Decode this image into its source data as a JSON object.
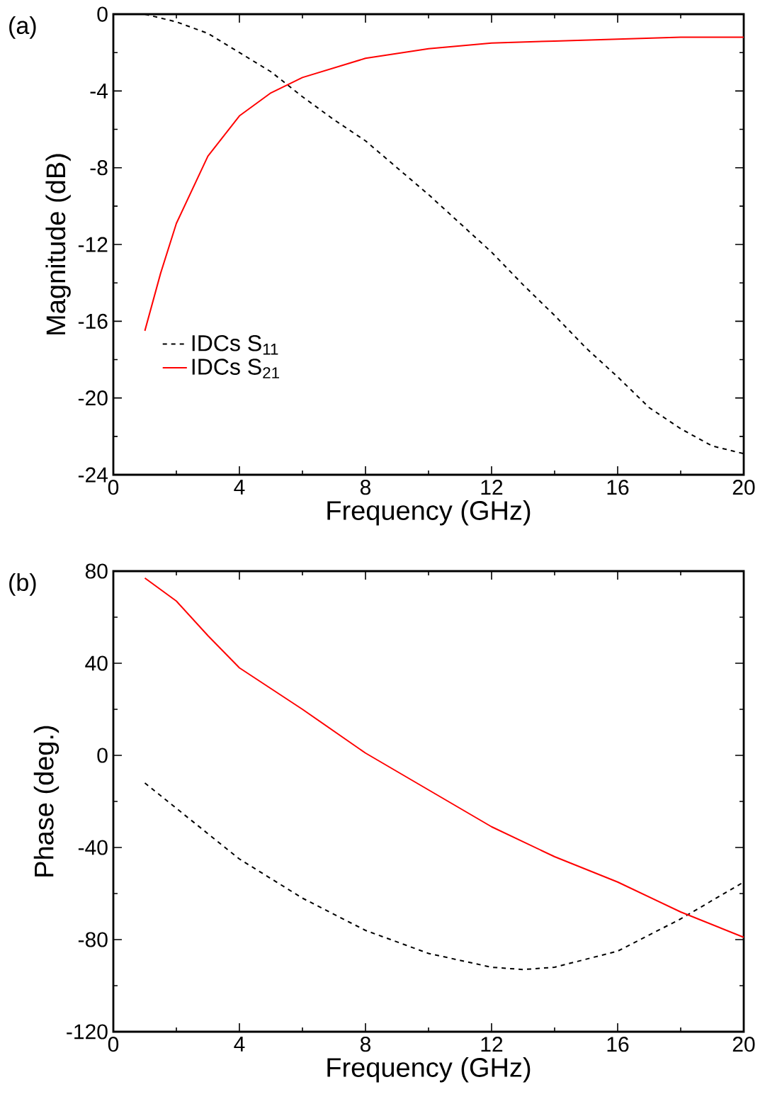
{
  "chart_data": [
    {
      "type": "line",
      "title": "(a)",
      "xlabel": "Frequency (GHz)",
      "ylabel": "Magnitude (dB)",
      "xlim": [
        0,
        20
      ],
      "ylim": [
        -24,
        0
      ],
      "xticks": [
        0,
        4,
        8,
        12,
        16,
        20
      ],
      "yticks": [
        0,
        -4,
        -8,
        -12,
        -16,
        -20,
        -24
      ],
      "legend": "bottom left",
      "series": [
        {
          "name": "IDCs S$_{11}$",
          "color": "#000000",
          "line_style": "dashed",
          "x": [
            1,
            2,
            3,
            4,
            5,
            6,
            7,
            8,
            9,
            10,
            11,
            12,
            13,
            14,
            15,
            16,
            17,
            18,
            19,
            20
          ],
          "values": [
            0,
            -0.4,
            -1.0,
            -2.0,
            -3.0,
            -4.3,
            -5.5,
            -6.6,
            -8.0,
            -9.4,
            -10.9,
            -12.4,
            -14.1,
            -15.7,
            -17.4,
            -18.9,
            -20.5,
            -21.6,
            -22.5,
            -22.9
          ]
        },
        {
          "name": "IDCs S$_{21}$",
          "color": "#ff0000",
          "line_style": "solid",
          "x": [
            1,
            1.5,
            2,
            3,
            4,
            5,
            6,
            7,
            8,
            10,
            12,
            14,
            16,
            18,
            20
          ],
          "values": [
            -16.5,
            -13.5,
            -10.9,
            -7.4,
            -5.3,
            -4.1,
            -3.3,
            -2.8,
            -2.3,
            -1.8,
            -1.5,
            -1.4,
            -1.3,
            -1.2,
            -1.2
          ]
        }
      ]
    },
    {
      "type": "line",
      "title": "(b)",
      "xlabel": "Frequency (GHz)",
      "ylabel": "Phase (deg.)",
      "xlim": [
        0,
        20
      ],
      "ylim": [
        -120,
        80
      ],
      "xticks": [
        0,
        4,
        8,
        12,
        16,
        20
      ],
      "yticks": [
        80,
        40,
        0,
        -40,
        -80,
        -120
      ],
      "series": [
        {
          "color": "#000000",
          "line_style": "dashed",
          "x": [
            1,
            2,
            4,
            6,
            8,
            10,
            12,
            13,
            14,
            16,
            18,
            19,
            20
          ],
          "values": [
            -12,
            -23,
            -45,
            -62,
            -76,
            -86,
            -92,
            -93,
            -92,
            -85,
            -71,
            -63,
            -55
          ]
        },
        {
          "color": "#ff0000",
          "line_style": "solid",
          "x": [
            1,
            2,
            3,
            4,
            6,
            8,
            10,
            12,
            14,
            16,
            18,
            20
          ],
          "values": [
            77,
            67,
            52,
            38,
            20,
            1,
            -15,
            -31,
            -44,
            -55,
            -68,
            -79
          ]
        }
      ]
    }
  ]
}
